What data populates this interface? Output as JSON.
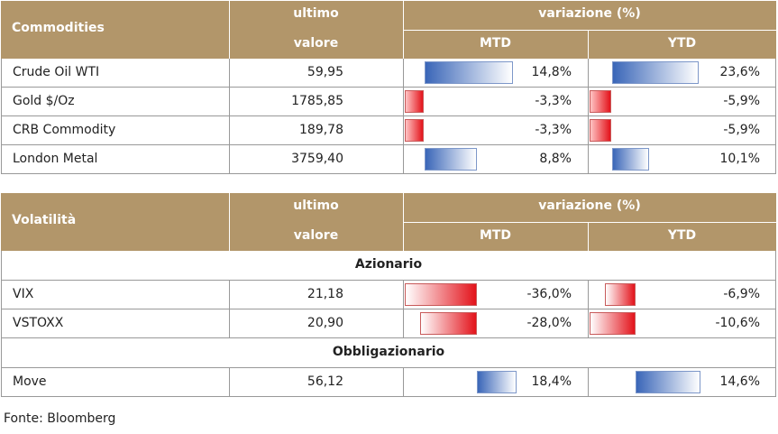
{
  "commodities": {
    "title": "Commodities",
    "col_last_1": "ultimo",
    "col_last_2": "valore",
    "col_var": "variazione (%)",
    "col_mtd": "MTD",
    "col_ytd": "YTD",
    "rows": [
      {
        "name": "Crude Oil WTI",
        "value": "59,95",
        "mtd": "14,8%",
        "ytd": "23,6%",
        "mtd_num": 14.8,
        "ytd_num": 23.6
      },
      {
        "name": "Gold $/Oz",
        "value": "1785,85",
        "mtd": "-3,3%",
        "ytd": "-5,9%",
        "mtd_num": -3.3,
        "ytd_num": -5.9
      },
      {
        "name": "CRB Commodity",
        "value": "189,78",
        "mtd": "-3,3%",
        "ytd": "-5,9%",
        "mtd_num": -3.3,
        "ytd_num": -5.9
      },
      {
        "name": "London Metal",
        "value": "3759,40",
        "mtd": "8,8%",
        "ytd": "10,1%",
        "mtd_num": 8.8,
        "ytd_num": 10.1
      }
    ]
  },
  "volatility": {
    "title": "Volatilità",
    "col_last_1": "ultimo",
    "col_last_2": "valore",
    "col_var": "variazione (%)",
    "col_mtd": "MTD",
    "col_ytd": "YTD",
    "section_equity": "Azionario",
    "equity_rows": [
      {
        "name": "VIX",
        "value": "21,18",
        "mtd": "-36,0%",
        "ytd": "-6,9%",
        "mtd_num": -36.0,
        "ytd_num": -6.9
      },
      {
        "name": "VSTOXX",
        "value": "20,90",
        "mtd": "-28,0%",
        "ytd": "-10,6%",
        "mtd_num": -28.0,
        "ytd_num": -10.6
      }
    ],
    "section_bonds": "Obbligazionario",
    "bond_rows": [
      {
        "name": "Move",
        "value": "56,12",
        "mtd": "18,4%",
        "ytd": "14,6%",
        "mtd_num": 18.4,
        "ytd_num": 14.6
      }
    ]
  },
  "colors": {
    "header_bg": "#b2966a",
    "positive_bar": "#3a66b8",
    "negative_bar": "#e3131b"
  },
  "footer": "Fonte: Bloomberg"
}
